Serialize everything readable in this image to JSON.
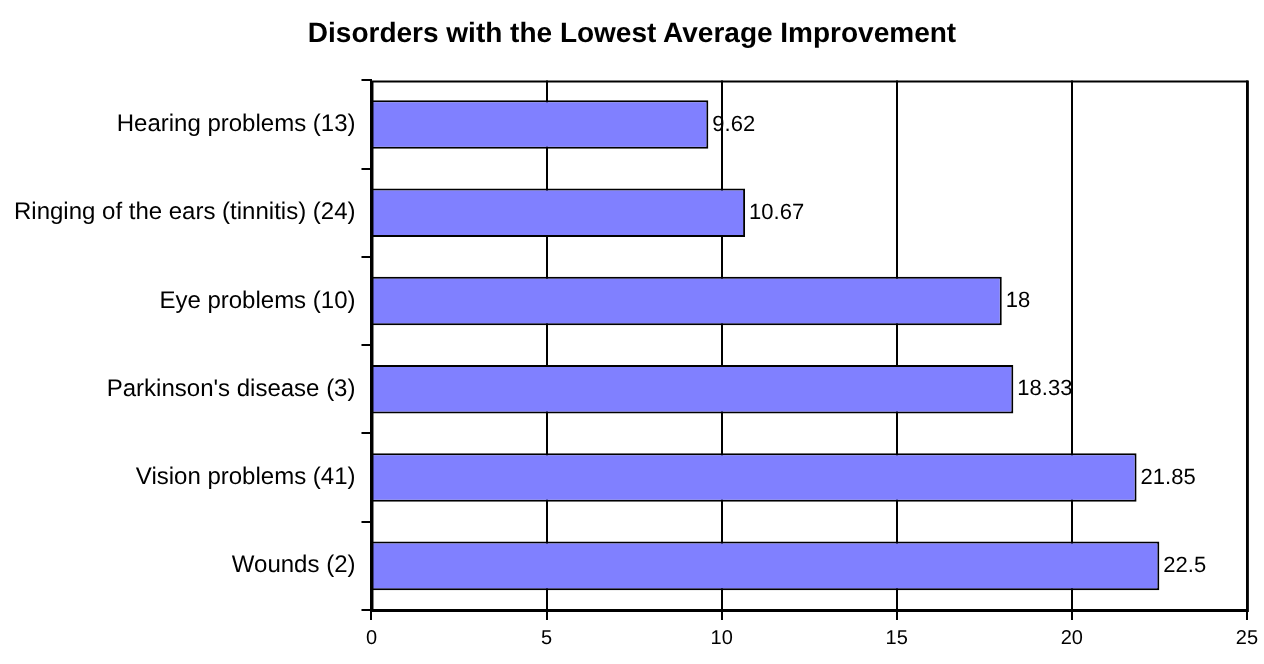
{
  "chart_data": {
    "type": "bar",
    "orientation": "horizontal",
    "title": "Disorders with the Lowest Average Improvement",
    "categories": [
      "Hearing problems (13)",
      "Ringing of the ears (tinnitis) (24)",
      "Eye problems (10)",
      "Parkinson's disease (3)",
      "Vision problems (41)",
      "Wounds (2)"
    ],
    "values": [
      9.62,
      10.67,
      18,
      18.33,
      21.85,
      22.5
    ],
    "color": "#8080ff",
    "data_labels": true,
    "xlim": [
      0,
      25
    ],
    "xticks": [
      0,
      5,
      10,
      15,
      20,
      25
    ],
    "grid": "x",
    "legend": false
  }
}
